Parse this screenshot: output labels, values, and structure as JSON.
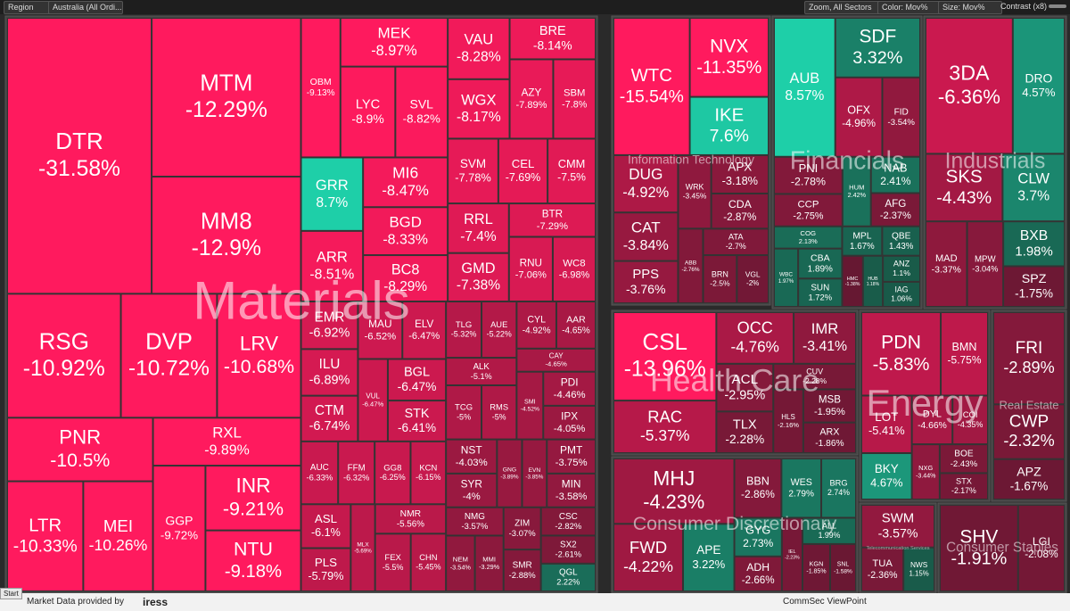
{
  "toolbar": {
    "region": "Region",
    "market": "Australia (All Ordi...",
    "zoom": "Zoom, All Sectors",
    "color": "Color: Mov%",
    "size": "Size: Mov%",
    "contrast": "Contrast (x8)"
  },
  "sectors": [
    {
      "name": "Materials",
      "tiles": [
        {
          "ticker": "DTR",
          "change": "-31.58%"
        },
        {
          "ticker": "MTM",
          "change": "-12.29%"
        },
        {
          "ticker": "MM8",
          "change": "-12.9%"
        },
        {
          "ticker": "RSG",
          "change": "-10.92%"
        },
        {
          "ticker": "DVP",
          "change": "-10.72%"
        },
        {
          "ticker": "LRV",
          "change": "-10.68%"
        },
        {
          "ticker": "PNR",
          "change": "-10.5%"
        },
        {
          "ticker": "LTR",
          "change": "-10.33%"
        },
        {
          "ticker": "MEI",
          "change": "-10.26%"
        },
        {
          "ticker": "RXL",
          "change": "-9.89%"
        },
        {
          "ticker": "GGP",
          "change": "-9.72%"
        },
        {
          "ticker": "INR",
          "change": "-9.21%"
        },
        {
          "ticker": "NTU",
          "change": "-9.18%"
        },
        {
          "ticker": "OBM",
          "change": "-9.13%"
        },
        {
          "ticker": "MEK",
          "change": "-8.97%"
        },
        {
          "ticker": "LYC",
          "change": "-8.9%"
        },
        {
          "ticker": "SVL",
          "change": "-8.82%"
        },
        {
          "ticker": "GRR",
          "change": "8.7%"
        },
        {
          "ticker": "ARR",
          "change": "-8.51%"
        },
        {
          "ticker": "MI6",
          "change": "-8.47%"
        },
        {
          "ticker": "BGD",
          "change": "-8.33%"
        },
        {
          "ticker": "BC8",
          "change": "-8.29%"
        },
        {
          "ticker": "VAU",
          "change": "-8.28%"
        },
        {
          "ticker": "WGX",
          "change": "-8.17%"
        },
        {
          "ticker": "BRE",
          "change": "-8.14%"
        },
        {
          "ticker": "AZY",
          "change": "-7.89%"
        },
        {
          "ticker": "SBM",
          "change": "-7.8%"
        },
        {
          "ticker": "SVM",
          "change": "-7.78%"
        },
        {
          "ticker": "CEL",
          "change": "-7.69%"
        },
        {
          "ticker": "CMM",
          "change": "-7.5%"
        },
        {
          "ticker": "RRL",
          "change": "-7.4%"
        },
        {
          "ticker": "GMD",
          "change": "-7.38%"
        },
        {
          "ticker": "BTR",
          "change": "-7.29%"
        },
        {
          "ticker": "RNU",
          "change": "-7.06%"
        },
        {
          "ticker": "WC8",
          "change": "-6.98%"
        },
        {
          "ticker": "EMR",
          "change": "-6.92%"
        },
        {
          "ticker": "ILU",
          "change": "-6.89%"
        },
        {
          "ticker": "CTM",
          "change": "-6.74%"
        },
        {
          "ticker": "MAU",
          "change": "-6.52%"
        },
        {
          "ticker": "ELV",
          "change": "-6.47%"
        },
        {
          "ticker": "VUL",
          "change": "-6.47%"
        },
        {
          "ticker": "BGL",
          "change": "-6.47%"
        },
        {
          "ticker": "STK",
          "change": "-6.41%"
        },
        {
          "ticker": "AUC",
          "change": "-6.33%"
        },
        {
          "ticker": "FFM",
          "change": "-6.32%"
        },
        {
          "ticker": "GG8",
          "change": "-6.25%"
        },
        {
          "ticker": "KCN",
          "change": "-6.15%"
        },
        {
          "ticker": "ASL",
          "change": "-6.1%"
        },
        {
          "ticker": "PLS",
          "change": "-5.79%"
        },
        {
          "ticker": "MLX",
          "change": "-5.69%"
        },
        {
          "ticker": "NMR",
          "change": "-5.56%"
        },
        {
          "ticker": "FEX",
          "change": "-5.5%"
        },
        {
          "ticker": "CHN",
          "change": "-5.45%"
        },
        {
          "ticker": "TLG",
          "change": "-5.32%"
        },
        {
          "ticker": "AUE",
          "change": "-5.22%"
        },
        {
          "ticker": "ALK",
          "change": "-5.1%"
        },
        {
          "ticker": "TCG",
          "change": "-5%"
        },
        {
          "ticker": "RMS",
          "change": "-5%"
        },
        {
          "ticker": "CYL",
          "change": "-4.92%"
        },
        {
          "ticker": "AAR",
          "change": "-4.65%"
        },
        {
          "ticker": "CAY",
          "change": "-4.65%"
        },
        {
          "ticker": "SMI",
          "change": "-4.52%"
        },
        {
          "ticker": "PDI",
          "change": "-4.46%"
        },
        {
          "ticker": "IPX",
          "change": "-4.05%"
        },
        {
          "ticker": "NST",
          "change": "-4.03%"
        },
        {
          "ticker": "SYR",
          "change": "-4%"
        },
        {
          "ticker": "GNG",
          "change": "-3.89%"
        },
        {
          "ticker": "EVN",
          "change": "-3.85%"
        },
        {
          "ticker": "PMT",
          "change": "-3.75%"
        },
        {
          "ticker": "MIN",
          "change": "-3.58%"
        },
        {
          "ticker": "NMG",
          "change": "-3.57%"
        },
        {
          "ticker": "NEM",
          "change": "-3.54%"
        },
        {
          "ticker": "MMI",
          "change": "-3.29%"
        },
        {
          "ticker": "ZIM",
          "change": "-3.07%"
        },
        {
          "ticker": "SMR",
          "change": "-2.88%"
        },
        {
          "ticker": "CSC",
          "change": "-2.82%"
        },
        {
          "ticker": "SX2",
          "change": "-2.61%"
        },
        {
          "ticker": "QGL",
          "change": "2.22%"
        }
      ]
    },
    {
      "name": "Information Technology",
      "tiles": [
        {
          "ticker": "WTC",
          "change": "-15.54%"
        },
        {
          "ticker": "NVX",
          "change": "-11.35%"
        },
        {
          "ticker": "IKE",
          "change": "7.6%"
        },
        {
          "ticker": "DUG",
          "change": "-4.92%"
        },
        {
          "ticker": "CAT",
          "change": "-3.84%"
        },
        {
          "ticker": "PPS",
          "change": "-3.76%"
        },
        {
          "ticker": "WRK",
          "change": "-3.45%"
        },
        {
          "ticker": "APX",
          "change": "-3.18%"
        },
        {
          "ticker": "CDA",
          "change": "-2.87%"
        },
        {
          "ticker": "ABB",
          "change": "-2.76%"
        },
        {
          "ticker": "ATA",
          "change": "-2.7%"
        },
        {
          "ticker": "BRN",
          "change": "-2.5%"
        },
        {
          "ticker": "VGL",
          "change": "-2%"
        }
      ]
    },
    {
      "name": "Financials",
      "tiles": [
        {
          "ticker": "AUB",
          "change": "8.57%"
        },
        {
          "ticker": "SDF",
          "change": "3.32%"
        },
        {
          "ticker": "OFX",
          "change": "-4.96%"
        },
        {
          "ticker": "FID",
          "change": "-3.54%"
        },
        {
          "ticker": "PNI",
          "change": "-2.78%"
        },
        {
          "ticker": "CCP",
          "change": "-2.75%"
        },
        {
          "ticker": "HUM",
          "change": "2.42%"
        },
        {
          "ticker": "NAB",
          "change": "2.41%"
        },
        {
          "ticker": "AFG",
          "change": "-2.37%"
        },
        {
          "ticker": "COG",
          "change": "2.13%"
        },
        {
          "ticker": "WBC",
          "change": "1.97%"
        },
        {
          "ticker": "CBA",
          "change": "1.89%"
        },
        {
          "ticker": "SUN",
          "change": "1.72%"
        },
        {
          "ticker": "MPL",
          "change": "1.67%"
        },
        {
          "ticker": "QBE",
          "change": "1.43%"
        },
        {
          "ticker": "HMC",
          "change": "-1.38%"
        },
        {
          "ticker": "HUB",
          "change": "1.18%"
        },
        {
          "ticker": "ANZ",
          "change": "1.1%"
        },
        {
          "ticker": "IAG",
          "change": "1.06%"
        }
      ]
    },
    {
      "name": "Industrials",
      "tiles": [
        {
          "ticker": "3DA",
          "change": "-6.36%"
        },
        {
          "ticker": "DRO",
          "change": "4.57%"
        },
        {
          "ticker": "SKS",
          "change": "-4.43%"
        },
        {
          "ticker": "CLW",
          "change": "3.7%"
        },
        {
          "ticker": "MAD",
          "change": "-3.37%"
        },
        {
          "ticker": "MPW",
          "change": "-3.04%"
        },
        {
          "ticker": "BXB",
          "change": "1.98%"
        },
        {
          "ticker": "SPZ",
          "change": "-1.75%"
        }
      ]
    },
    {
      "name": "Health Care",
      "tiles": [
        {
          "ticker": "CSL",
          "change": "-13.96%"
        },
        {
          "ticker": "RAC",
          "change": "-5.37%"
        },
        {
          "ticker": "OCC",
          "change": "-4.76%"
        },
        {
          "ticker": "IMR",
          "change": "-3.41%"
        },
        {
          "ticker": "ACL",
          "change": "-2.95%"
        },
        {
          "ticker": "TLX",
          "change": "-2.28%"
        },
        {
          "ticker": "CUV",
          "change": "-2.28%"
        },
        {
          "ticker": "HLS",
          "change": "-2.16%"
        },
        {
          "ticker": "MSB",
          "change": "-1.95%"
        },
        {
          "ticker": "ARX",
          "change": "-1.86%"
        }
      ]
    },
    {
      "name": "Energy",
      "tiles": [
        {
          "ticker": "PDN",
          "change": "-5.83%"
        },
        {
          "ticker": "BMN",
          "change": "-5.75%"
        },
        {
          "ticker": "LOT",
          "change": "-5.41%"
        },
        {
          "ticker": "BKY",
          "change": "4.67%"
        },
        {
          "ticker": "DYL",
          "change": "-4.66%"
        },
        {
          "ticker": "COI",
          "change": "-4.35%"
        },
        {
          "ticker": "NXG",
          "change": "-3.44%"
        },
        {
          "ticker": "BOE",
          "change": "-2.43%"
        },
        {
          "ticker": "STX",
          "change": "-2.17%"
        }
      ]
    },
    {
      "name": "Real Estate",
      "tiles": [
        {
          "ticker": "FRI",
          "change": "-2.89%"
        },
        {
          "ticker": "CWP",
          "change": "-2.32%"
        },
        {
          "ticker": "APZ",
          "change": "-1.67%"
        }
      ]
    },
    {
      "name": "Consumer Discretionary",
      "tiles": [
        {
          "ticker": "MHJ",
          "change": "-4.23%"
        },
        {
          "ticker": "FWD",
          "change": "-4.22%"
        },
        {
          "ticker": "APE",
          "change": "3.22%"
        },
        {
          "ticker": "BBN",
          "change": "-2.86%"
        },
        {
          "ticker": "WES",
          "change": "2.79%"
        },
        {
          "ticker": "BRG",
          "change": "2.74%"
        },
        {
          "ticker": "GYG",
          "change": "2.73%"
        },
        {
          "ticker": "ADH",
          "change": "-2.66%"
        },
        {
          "ticker": "IEL",
          "change": "-2.23%"
        },
        {
          "ticker": "ALL",
          "change": "1.99%"
        },
        {
          "ticker": "KGN",
          "change": "-1.85%"
        },
        {
          "ticker": "SNL",
          "change": "-1.58%"
        }
      ]
    },
    {
      "name": "Telecommunication Services",
      "tiles": [
        {
          "ticker": "SWM",
          "change": "-3.57%"
        },
        {
          "ticker": "TUA",
          "change": "-2.36%"
        },
        {
          "ticker": "NWS",
          "change": "1.15%"
        }
      ]
    },
    {
      "name": "Consumer Staples",
      "tiles": [
        {
          "ticker": "SHV",
          "change": "-1.91%"
        },
        {
          "ticker": "LGI",
          "change": "-2.08%"
        }
      ]
    }
  ],
  "footer": {
    "start": "Start",
    "provider": "Market Data provided by",
    "brand": "iress",
    "source": "CommSec ViewPoint"
  }
}
